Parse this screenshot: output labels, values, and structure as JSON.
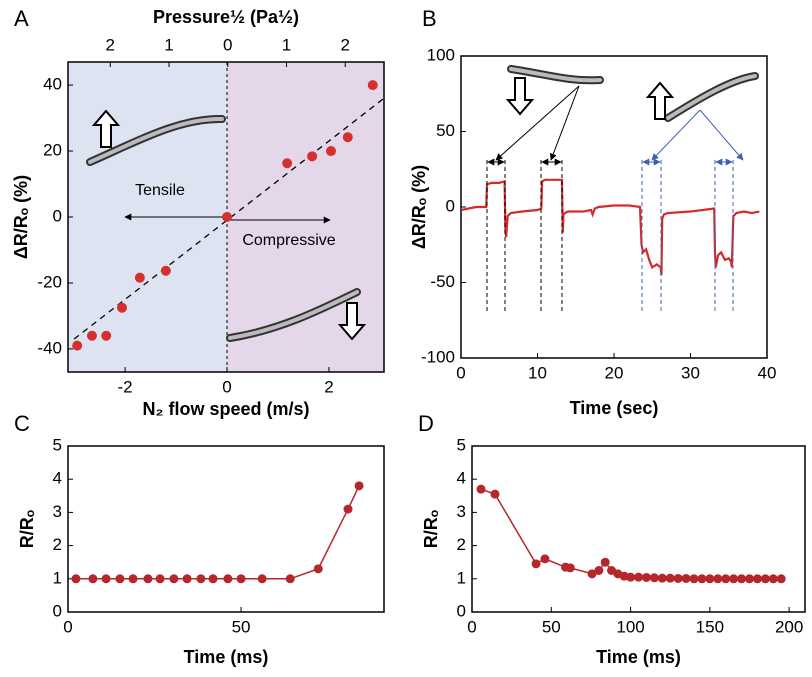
{
  "chart_data": [
    {
      "type": "scatter",
      "panel_label": "A",
      "x2label": "Pressure½ (Pa½)",
      "xlabel": "N₂ flow speed (m/s)",
      "ylabel": "ΔR/Rₒ (%)",
      "x": [
        -2.94,
        -2.65,
        -2.37,
        -2.06,
        -1.71,
        -1.2,
        0,
        1.18,
        1.67,
        2.04,
        2.37,
        2.86
      ],
      "values": [
        -39,
        -36,
        -36,
        -27.5,
        -18.4,
        -16.3,
        0,
        16.3,
        18.4,
        20,
        24.2,
        40
      ],
      "color": "#d62f2f",
      "fit_line": {
        "x": [
          -3.0,
          3.08
        ],
        "y": [
          -37,
          36
        ]
      },
      "annotations": [
        "Tensile",
        "Compressive"
      ],
      "xlim": [
        -3.12,
        3.08
      ],
      "xticks": [
        -2,
        0,
        2
      ],
      "x2lim": [
        -2.72,
        2.66
      ],
      "x2ticks": [
        {
          "value": -2,
          "label": "2"
        },
        {
          "value": -1,
          "label": "1"
        },
        0,
        1,
        2
      ],
      "ylim": [
        -47,
        47
      ],
      "yticks": [
        -40,
        -20,
        0,
        20,
        40
      ]
    },
    {
      "type": "line",
      "panel_label": "B",
      "xlabel": "Time (sec)",
      "ylabel": "ΔR/Rₒ (%)",
      "x": [
        0,
        1,
        2,
        3,
        3.3,
        3.4,
        4,
        5,
        5.7,
        5.8,
        5.9,
        6.1,
        6.5,
        8,
        10,
        10.5,
        10.6,
        11,
        12,
        13.2,
        13.3,
        13.4,
        13.6,
        14,
        16,
        17,
        17.2,
        17.5,
        18,
        20,
        22,
        23.4,
        23.6,
        23.8,
        24.2,
        24.6,
        25,
        25.6,
        26.1,
        26.2,
        26.3,
        26.5,
        27,
        30,
        33.1,
        33.2,
        33.3,
        33.6,
        34,
        34.5,
        35,
        35.3,
        35.4,
        35.6,
        36,
        37,
        38,
        39
      ],
      "values": [
        -2,
        -1,
        0,
        0,
        0,
        15,
        16,
        16,
        17,
        -15,
        -20,
        -6,
        -4,
        -3,
        -2,
        -1,
        17,
        18,
        18,
        18,
        -17,
        -5,
        -4,
        -3,
        -3,
        -2,
        -5,
        -1,
        0,
        1,
        1,
        0,
        -25,
        -30,
        -28,
        -35,
        -40,
        -38,
        -40,
        -45,
        -8,
        -5,
        -4,
        -3,
        -1,
        -30,
        -40,
        -32,
        -30,
        -35,
        -34,
        -36,
        -40,
        -6,
        -4,
        -3,
        -4,
        -3
      ],
      "color": "#d42a2a",
      "xlim": [
        0,
        40
      ],
      "xticks": [
        0,
        10,
        20,
        30,
        40
      ],
      "ylim": [
        -100,
        100
      ],
      "yticks": [
        -100,
        -50,
        0,
        50,
        100
      ]
    },
    {
      "type": "line",
      "markers": true,
      "panel_label": "C",
      "xlabel": "Time (ms)",
      "ylabel": "R/Rₒ",
      "x": [
        2.3,
        7.2,
        11,
        15,
        18.8,
        23.1,
        26.6,
        30.6,
        34.4,
        38.4,
        41.9,
        46.2,
        50,
        56.1,
        64.2,
        72.3,
        80.9,
        84.1
      ],
      "values": [
        1,
        1,
        1,
        1,
        1,
        1,
        1,
        1,
        1,
        1,
        1,
        1,
        1,
        1,
        1,
        1.3,
        3.1,
        3.8
      ],
      "color": "#b5272b",
      "xlim": [
        0,
        91.3
      ],
      "xticks": [
        0,
        50
      ],
      "ylim": [
        0,
        5
      ],
      "yticks": [
        0,
        1,
        2,
        3,
        4,
        5
      ]
    },
    {
      "type": "line",
      "markers": true,
      "panel_label": "D",
      "xlabel": "Time (ms)",
      "ylabel": "R/Rₒ",
      "x": [
        5.7,
        14.5,
        40.4,
        46,
        59,
        62,
        75.7,
        80,
        84,
        88,
        92,
        96,
        100,
        105,
        110,
        115,
        120,
        125,
        130,
        135,
        140,
        145,
        150,
        155,
        160,
        165,
        170,
        175,
        180,
        185,
        190,
        195
      ],
      "values": [
        3.7,
        3.55,
        1.45,
        1.6,
        1.35,
        1.33,
        1.15,
        1.25,
        1.5,
        1.25,
        1.15,
        1.08,
        1.05,
        1.05,
        1.04,
        1.03,
        1.02,
        1.02,
        1.01,
        1.01,
        1,
        1,
        1,
        1,
        1,
        1,
        1,
        1,
        1,
        1,
        1,
        1
      ],
      "color": "#b5272b",
      "xlim": [
        0,
        210
      ],
      "xticks": [
        0,
        50,
        100,
        150,
        200
      ],
      "ylim": [
        0,
        5
      ],
      "yticks": [
        0,
        1,
        2,
        3,
        4,
        5
      ]
    }
  ]
}
